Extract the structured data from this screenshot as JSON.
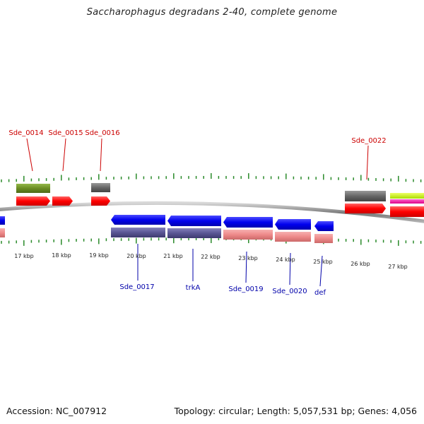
{
  "map": {
    "title": "Saccharophagus degradans 2-40, complete genome",
    "accession": "Accession: NC_007912",
    "summary": "Topology: circular; Length: 5,057,531 bp; Genes: 4,056"
  },
  "colors": {
    "forward_label": "#cc0000",
    "reverse_label": "#0000aa",
    "forward_gene": "#ff0000",
    "reverse_gene": "#0000ee",
    "forward_feature_pink": "#ee8a8a",
    "reverse_feature_purple": "#5a5694",
    "olive_feature": "#6b8e23",
    "gray_feature": "#666666",
    "tick": "#2a8a2a",
    "backbone": "#888888"
  },
  "forward_genes": [
    {
      "label": "Sde_0014"
    },
    {
      "label": "Sde_0015"
    },
    {
      "label": "Sde_0016"
    },
    {
      "label": "Sde_0022"
    }
  ],
  "reverse_genes": [
    {
      "label": "Sde_0017"
    },
    {
      "label": "trkA"
    },
    {
      "label": "Sde_0019"
    },
    {
      "label": "Sde_0020"
    },
    {
      "label": "def"
    }
  ],
  "scale_labels": [
    "17 kbp",
    "18 kbp",
    "19 kbp",
    "20 kbp",
    "21 kbp",
    "22 kbp",
    "23 kbp",
    "24 kbp",
    "25 kbp",
    "26 kbp",
    "27 kbp"
  ]
}
